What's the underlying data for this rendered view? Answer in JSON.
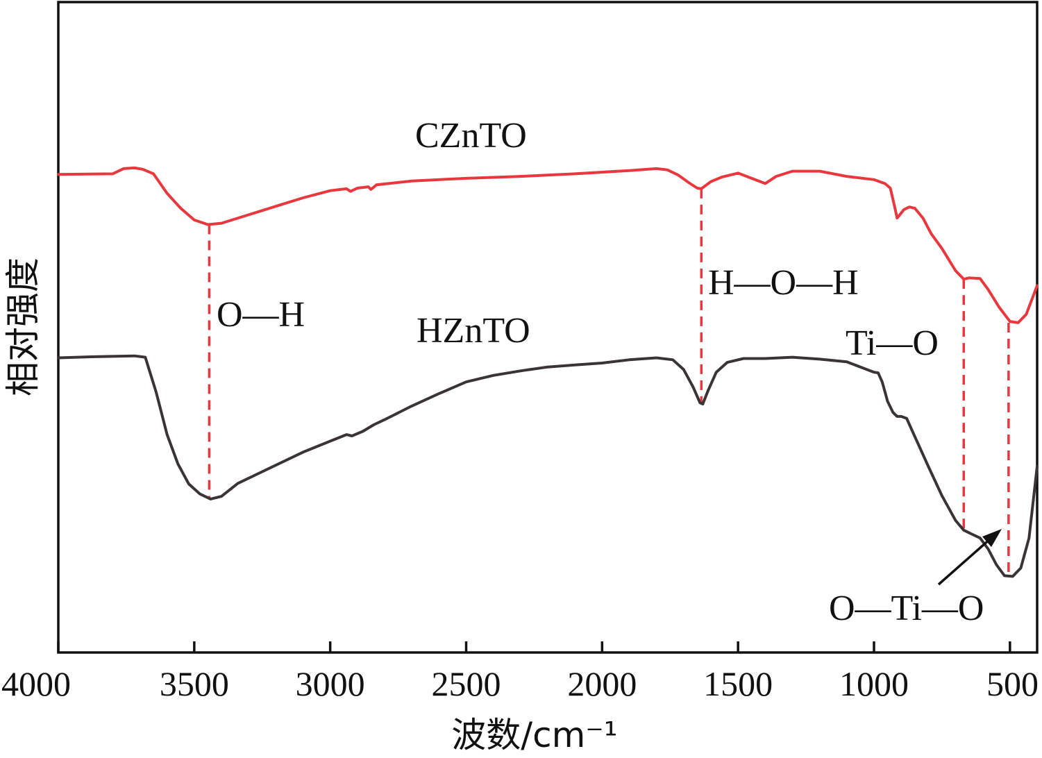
{
  "chart_data": {
    "type": "line",
    "title": "",
    "xlabel": "波数/cm⁻¹",
    "ylabel": "相对强度",
    "xlim": [
      4000,
      400
    ],
    "x_reversed": true,
    "x_ticks": [
      4000,
      3500,
      3000,
      2500,
      2000,
      1500,
      1000,
      500
    ],
    "x_tick_labels": [
      "4000",
      "3500",
      "3000",
      "2500",
      "2000",
      "1500",
      "1000",
      "500"
    ],
    "ylim": [
      0,
      100
    ],
    "y_ticks_shown": false,
    "grid": false,
    "legend": "none",
    "series": [
      {
        "name": "CZnTO",
        "color": "#e8383d",
        "points": [
          [
            4000,
            73.5
          ],
          [
            3800,
            73.6
          ],
          [
            3760,
            74.4
          ],
          [
            3720,
            74.5
          ],
          [
            3690,
            74.3
          ],
          [
            3650,
            73.6
          ],
          [
            3600,
            70.6
          ],
          [
            3550,
            68.3
          ],
          [
            3500,
            66.5
          ],
          [
            3450,
            65.8
          ],
          [
            3400,
            66.0
          ],
          [
            3300,
            67.3
          ],
          [
            3200,
            68.6
          ],
          [
            3100,
            69.9
          ],
          [
            3000,
            71.0
          ],
          [
            2940,
            71.3
          ],
          [
            2925,
            70.9
          ],
          [
            2900,
            71.4
          ],
          [
            2860,
            71.6
          ],
          [
            2850,
            71.2
          ],
          [
            2830,
            71.9
          ],
          [
            2700,
            72.5
          ],
          [
            2500,
            72.9
          ],
          [
            2300,
            73.2
          ],
          [
            2100,
            73.6
          ],
          [
            1900,
            74.1
          ],
          [
            1800,
            74.4
          ],
          [
            1760,
            74.2
          ],
          [
            1720,
            73.4
          ],
          [
            1680,
            72.2
          ],
          [
            1650,
            71.4
          ],
          [
            1635,
            71.3
          ],
          [
            1600,
            72.4
          ],
          [
            1560,
            73.1
          ],
          [
            1500,
            73.7
          ],
          [
            1450,
            72.9
          ],
          [
            1400,
            72.1
          ],
          [
            1360,
            73.2
          ],
          [
            1300,
            74.0
          ],
          [
            1200,
            74.0
          ],
          [
            1100,
            73.2
          ],
          [
            1000,
            72.7
          ],
          [
            960,
            72.1
          ],
          [
            940,
            71.4
          ],
          [
            925,
            68.7
          ],
          [
            915,
            66.8
          ],
          [
            905,
            67.3
          ],
          [
            890,
            68.1
          ],
          [
            870,
            68.5
          ],
          [
            850,
            68.3
          ],
          [
            820,
            66.8
          ],
          [
            790,
            64.4
          ],
          [
            750,
            62.1
          ],
          [
            700,
            58.7
          ],
          [
            670,
            57.4
          ],
          [
            650,
            57.6
          ],
          [
            610,
            57.5
          ],
          [
            580,
            55.8
          ],
          [
            540,
            53.1
          ],
          [
            500,
            50.9
          ],
          [
            470,
            50.7
          ],
          [
            440,
            52.0
          ],
          [
            400,
            56.4
          ]
        ]
      },
      {
        "name": "HZnTO",
        "color": "#3a3434",
        "points": [
          [
            4000,
            45.3
          ],
          [
            3850,
            45.5
          ],
          [
            3720,
            45.6
          ],
          [
            3680,
            45.4
          ],
          [
            3640,
            40.0
          ],
          [
            3600,
            33.5
          ],
          [
            3560,
            29.0
          ],
          [
            3520,
            25.9
          ],
          [
            3480,
            24.4
          ],
          [
            3440,
            23.6
          ],
          [
            3400,
            24.0
          ],
          [
            3340,
            26.0
          ],
          [
            3250,
            27.8
          ],
          [
            3100,
            30.8
          ],
          [
            3000,
            32.5
          ],
          [
            2940,
            33.5
          ],
          [
            2920,
            33.3
          ],
          [
            2880,
            34.0
          ],
          [
            2840,
            35.0
          ],
          [
            2800,
            35.8
          ],
          [
            2700,
            37.9
          ],
          [
            2600,
            39.8
          ],
          [
            2500,
            41.6
          ],
          [
            2400,
            42.6
          ],
          [
            2300,
            43.3
          ],
          [
            2200,
            43.9
          ],
          [
            2100,
            44.2
          ],
          [
            2000,
            44.5
          ],
          [
            1900,
            45.0
          ],
          [
            1800,
            45.3
          ],
          [
            1740,
            45.0
          ],
          [
            1700,
            43.5
          ],
          [
            1665,
            40.8
          ],
          [
            1640,
            38.4
          ],
          [
            1630,
            38.2
          ],
          [
            1610,
            40.3
          ],
          [
            1580,
            43.1
          ],
          [
            1540,
            44.6
          ],
          [
            1480,
            45.2
          ],
          [
            1400,
            45.2
          ],
          [
            1300,
            45.4
          ],
          [
            1200,
            45.1
          ],
          [
            1100,
            44.7
          ],
          [
            1000,
            43.1
          ],
          [
            985,
            43.0
          ],
          [
            970,
            41.6
          ],
          [
            950,
            38.6
          ],
          [
            930,
            36.9
          ],
          [
            915,
            36.3
          ],
          [
            900,
            36.3
          ],
          [
            880,
            36.0
          ],
          [
            850,
            33.2
          ],
          [
            800,
            28.6
          ],
          [
            750,
            24.1
          ],
          [
            700,
            20.3
          ],
          [
            670,
            18.8
          ],
          [
            640,
            18.2
          ],
          [
            610,
            17.6
          ],
          [
            580,
            15.9
          ],
          [
            550,
            13.5
          ],
          [
            520,
            11.8
          ],
          [
            490,
            11.7
          ],
          [
            460,
            13.0
          ],
          [
            430,
            17.6
          ],
          [
            400,
            28.6
          ]
        ]
      }
    ],
    "peak_markers": [
      {
        "x": 3445,
        "y_top": 65.8,
        "y_bottom": 23.6
      },
      {
        "x": 1635,
        "y_top": 71.3,
        "y_bottom": 38.2
      },
      {
        "x": 670,
        "y_top": 57.4,
        "y_bottom": 18.8
      },
      {
        "x": 505,
        "y_top": 50.7,
        "y_bottom": 11.7
      }
    ],
    "annotations": [
      {
        "text": "CZnTO"
      },
      {
        "text": "HZnTO"
      },
      {
        "text": "O—H"
      },
      {
        "text": "H—O—H"
      },
      {
        "text": "Ti—O"
      },
      {
        "text": "O—Ti—O"
      }
    ],
    "annotation_colors": {
      "marker": "#e8383d",
      "arrow": "#111111"
    }
  }
}
